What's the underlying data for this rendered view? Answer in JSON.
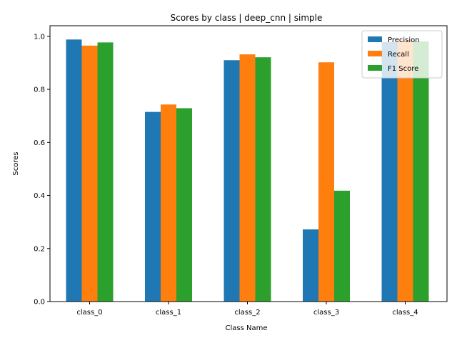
{
  "chart_data": {
    "type": "bar",
    "title": "Scores by class | deep_cnn | simple",
    "xlabel": "Class Name",
    "ylabel": "Scores",
    "categories": [
      "class_0",
      "class_1",
      "class_2",
      "class_3",
      "class_4"
    ],
    "series": [
      {
        "name": "Precision",
        "color": "#1f77b4",
        "values": [
          0.988,
          0.715,
          0.91,
          0.272,
          0.978
        ]
      },
      {
        "name": "Recall",
        "color": "#ff7f0e",
        "values": [
          0.965,
          0.743,
          0.932,
          0.902,
          0.985
        ]
      },
      {
        "name": "F1 Score",
        "color": "#2ca02c",
        "values": [
          0.977,
          0.729,
          0.921,
          0.418,
          0.981
        ]
      }
    ],
    "ylim": [
      0,
      1.04
    ],
    "yticks": [
      "0.0",
      "0.2",
      "0.4",
      "0.6",
      "0.8",
      "1.0"
    ],
    "grid": false,
    "legend_position": "top-right"
  }
}
